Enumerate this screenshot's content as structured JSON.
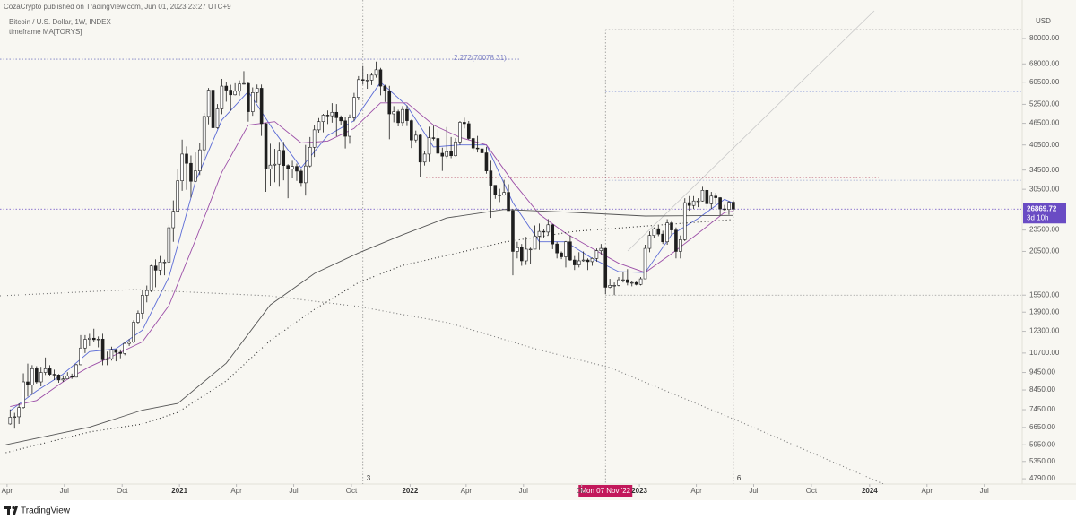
{
  "header": {
    "publisher": "CozaCrypto published on TradingView.com, Jun 01, 2023 23:27 UTC+9"
  },
  "footer": {
    "brand": "TradingView"
  },
  "chart_data": {
    "type": "candlestick",
    "title": "Bitcoin / U.S. Dollar, 1W, INDEX",
    "subtitle": "timeframe MA[TORYS]",
    "y_axis_label": "USD",
    "log_scale": true,
    "grid": false,
    "up_color": "#ffffff",
    "down_color": "#1e1e1e",
    "wick_color": "#1e1e1e",
    "xlim": [
      -1.3,
      230.5
    ],
    "xticks": [
      {
        "value": 0.3,
        "label": "Apr"
      },
      {
        "value": 13.3,
        "label": "Jul"
      },
      {
        "value": 26.4,
        "label": "Oct"
      },
      {
        "value": 39.4,
        "label": "2021"
      },
      {
        "value": 52.3,
        "label": "Apr"
      },
      {
        "value": 65.3,
        "label": "Jul"
      },
      {
        "value": 78.4,
        "label": "Oct"
      },
      {
        "value": 91.7,
        "label": "2022"
      },
      {
        "value": 104.4,
        "label": "Apr"
      },
      {
        "value": 117.4,
        "label": "Jul"
      },
      {
        "value": 130.6,
        "label": "Oct"
      },
      {
        "value": 143.7,
        "label": "2023"
      },
      {
        "value": 156.6,
        "label": "Apr"
      },
      {
        "value": 169.6,
        "label": "Jul"
      },
      {
        "value": 182.7,
        "label": "Oct"
      },
      {
        "value": 195.9,
        "label": "2024"
      },
      {
        "value": 208.9,
        "label": "Apr"
      },
      {
        "value": 221.9,
        "label": "Jul"
      }
    ],
    "ylim": [
      4630,
      93900
    ],
    "yticks": [
      {
        "value": 80000,
        "label": "80000.00"
      },
      {
        "value": 68000,
        "label": "68000.00"
      },
      {
        "value": 60500,
        "label": "60500.00"
      },
      {
        "value": 52500,
        "label": "52500.00"
      },
      {
        "value": 46500,
        "label": "46500.00"
      },
      {
        "value": 40500,
        "label": "40500.00"
      },
      {
        "value": 34500,
        "label": "34500.00"
      },
      {
        "value": 30500,
        "label": "30500.00"
      },
      {
        "value": 23500,
        "label": "23500.00"
      },
      {
        "value": 20500,
        "label": "20500.00"
      },
      {
        "value": 15500,
        "label": "15500.00"
      },
      {
        "value": 13900,
        "label": "13900.00"
      },
      {
        "value": 12300,
        "label": "12300.00"
      },
      {
        "value": 10700,
        "label": "10700.00"
      },
      {
        "value": 9450,
        "label": "9450.00"
      },
      {
        "value": 8450,
        "label": "8450.00"
      },
      {
        "value": 7450,
        "label": "7450.00"
      },
      {
        "value": 6650,
        "label": "6650.00"
      },
      {
        "value": 5950,
        "label": "5950.00"
      },
      {
        "value": 5350,
        "label": "5350.00"
      },
      {
        "value": 4790,
        "label": "4790.00"
      }
    ],
    "candles": {
      "x": [
        1,
        2,
        3,
        4,
        5,
        6,
        7,
        8,
        9,
        10,
        11,
        12,
        13,
        14,
        15,
        16,
        17,
        18,
        19,
        20,
        21,
        22,
        23,
        24,
        25,
        26,
        27,
        28,
        29,
        30,
        31,
        32,
        33,
        34,
        35,
        36,
        37,
        38,
        39,
        40,
        41,
        42,
        43,
        44,
        45,
        46,
        47,
        48,
        49,
        50,
        51,
        52,
        53,
        54,
        55,
        56,
        57,
        58,
        59,
        60,
        61,
        62,
        63,
        64,
        65,
        66,
        67,
        68,
        69,
        70,
        71,
        72,
        73,
        74,
        75,
        76,
        77,
        78,
        79,
        80,
        81,
        82,
        83,
        84,
        85,
        86,
        87,
        88,
        89,
        90,
        91,
        92,
        93,
        94,
        95,
        96,
        97,
        98,
        99,
        100,
        101,
        102,
        103,
        104,
        105,
        106,
        107,
        108,
        109,
        110,
        111,
        112,
        113,
        114,
        115,
        116,
        117,
        118,
        119,
        120,
        121,
        122,
        123,
        124,
        125,
        126,
        127,
        128,
        129,
        130,
        131,
        132,
        133,
        134,
        135,
        136,
        137,
        138,
        139,
        140,
        141,
        142,
        143,
        144,
        145,
        146,
        147,
        148,
        149,
        150,
        151,
        152,
        153,
        154,
        155,
        156,
        157,
        158,
        159,
        160,
        161,
        162,
        163,
        164,
        165
      ],
      "open": [
        6800,
        7100,
        7120,
        7550,
        8900,
        8720,
        9680,
        8900,
        9450,
        9680,
        9340,
        9300,
        9010,
        9070,
        9240,
        9170,
        9930,
        11050,
        11680,
        11770,
        11660,
        11700,
        10250,
        10320,
        10940,
        10750,
        10670,
        11380,
        11500,
        13030,
        13800,
        15480,
        15960,
        18680,
        18180,
        19150,
        19150,
        23850,
        26500,
        32200,
        38200,
        36000,
        32100,
        34300,
        39250,
        48600,
        57500,
        45200,
        51000,
        59000,
        57500,
        55800,
        57100,
        59800,
        60000,
        50100,
        56600,
        58200,
        46400,
        34700,
        35600,
        35800,
        39100,
        35500,
        34700,
        35300,
        34250,
        31800,
        35400,
        39900,
        44600,
        47000,
        49000,
        48800,
        49900,
        48200,
        47250,
        42800,
        48200,
        54900,
        61500,
        61300,
        61300,
        63300,
        65500,
        59000,
        57200,
        49400,
        50100,
        46700,
        50800,
        47300,
        41800,
        43100,
        36300,
        38200,
        42400,
        42200,
        38400,
        37700,
        38800,
        37800,
        41300,
        46800,
        46400,
        42200,
        39700,
        39500,
        38500,
        34300,
        31300,
        29400,
        29400,
        29900,
        26600,
        20500,
        21000,
        19300,
        20800,
        20800,
        22600,
        23300,
        23200,
        24300,
        21500,
        20300,
        19800,
        21800,
        19400,
        18800,
        19300,
        19400,
        19200,
        19600,
        20600,
        20900,
        16300,
        16500,
        16500,
        17100,
        17100,
        16800,
        16800,
        16600,
        17200,
        20900,
        22700,
        23700,
        22900,
        21800,
        24600,
        23500,
        20500,
        22100,
        28000,
        27500,
        28300,
        28300,
        30300,
        27800,
        29200,
        28900,
        26900,
        26800,
        28080
      ],
      "high": [
        7460,
        7300,
        7750,
        9400,
        10000,
        9900,
        9840,
        9800,
        10400,
        9900,
        9620,
        9350,
        9280,
        9470,
        9380,
        9980,
        12000,
        12000,
        12100,
        12500,
        11900,
        12100,
        10800,
        11150,
        10980,
        10950,
        11480,
        11700,
        13200,
        14050,
        15970,
        16480,
        18800,
        19480,
        19900,
        19450,
        24300,
        28400,
        34800,
        41900,
        40100,
        37850,
        38600,
        40900,
        49700,
        58300,
        58300,
        52600,
        61800,
        60600,
        59500,
        60100,
        61200,
        64900,
        60400,
        58500,
        59600,
        59600,
        46600,
        40800,
        39500,
        41300,
        41300,
        35800,
        36600,
        35950,
        34600,
        40500,
        42600,
        46000,
        48100,
        49400,
        50500,
        52900,
        52600,
        48900,
        48400,
        49200,
        56500,
        62900,
        67000,
        63700,
        64300,
        69000,
        66300,
        59500,
        59100,
        51900,
        50700,
        51900,
        52100,
        47600,
        44400,
        43500,
        38900,
        45500,
        45800,
        44800,
        39800,
        45400,
        42600,
        42300,
        47200,
        48200,
        47200,
        42400,
        42900,
        40000,
        40000,
        36600,
        31300,
        30600,
        32400,
        31500,
        26900,
        21800,
        21500,
        22500,
        21000,
        24200,
        24500,
        23600,
        25200,
        24400,
        21800,
        20500,
        21900,
        22700,
        19900,
        20400,
        20500,
        19600,
        19700,
        20900,
        21500,
        21000,
        17200,
        16800,
        17400,
        18000,
        18300,
        17000,
        16900,
        17400,
        21400,
        23300,
        23900,
        24200,
        23400,
        25200,
        25000,
        23900,
        22700,
        28800,
        29200,
        29200,
        28800,
        31000,
        30500,
        30000,
        29800,
        29000,
        27600,
        28300,
        28400
      ],
      "low": [
        6770,
        6600,
        6800,
        7500,
        8100,
        8200,
        8800,
        8650,
        9300,
        9250,
        9000,
        8850,
        8900,
        9050,
        9070,
        9150,
        9900,
        10700,
        11200,
        11500,
        11100,
        9900,
        9900,
        10200,
        10150,
        10350,
        10550,
        11200,
        11400,
        12900,
        13300,
        14800,
        15800,
        16300,
        17600,
        17600,
        19000,
        21800,
        26500,
        30200,
        30400,
        28900,
        32000,
        33400,
        37300,
        46200,
        43000,
        44900,
        49300,
        53400,
        50400,
        55600,
        55500,
        59600,
        47000,
        48800,
        53000,
        42900,
        30000,
        31200,
        31900,
        31000,
        32300,
        28800,
        32700,
        32200,
        31000,
        29300,
        35100,
        37500,
        43800,
        43900,
        46300,
        46700,
        42800,
        46000,
        39600,
        40800,
        47100,
        53900,
        59600,
        58000,
        59400,
        62300,
        55600,
        53300,
        42000,
        46800,
        45600,
        45600,
        45700,
        39700,
        41200,
        33000,
        35500,
        36300,
        41700,
        38000,
        34300,
        37200,
        37200,
        37600,
        40500,
        45000,
        41900,
        39200,
        38600,
        37600,
        33700,
        25400,
        28700,
        28100,
        29300,
        26600,
        17600,
        19600,
        18700,
        18800,
        18900,
        20800,
        20700,
        22400,
        22700,
        20800,
        19600,
        19500,
        18500,
        19300,
        18200,
        18500,
        19200,
        18200,
        18700,
        19200,
        20100,
        15600,
        16200,
        15500,
        16400,
        16800,
        16500,
        16400,
        16500,
        16500,
        17200,
        20400,
        22300,
        22600,
        21500,
        21400,
        22700,
        19600,
        19600,
        21900,
        26600,
        26900,
        27200,
        28200,
        27200,
        26900,
        27700,
        25800,
        26600,
        25900,
        26600
      ],
      "close": [
        7100,
        7120,
        7550,
        8900,
        8720,
        9680,
        8900,
        9450,
        9680,
        9340,
        9300,
        9010,
        9070,
        9240,
        9170,
        9930,
        11050,
        11680,
        11770,
        11660,
        11700,
        10250,
        10320,
        10940,
        10750,
        10670,
        11380,
        11500,
        13030,
        13800,
        15480,
        15960,
        18680,
        18180,
        19150,
        19150,
        23850,
        26500,
        32200,
        38200,
        36000,
        32100,
        34300,
        39250,
        48600,
        57500,
        45200,
        51000,
        59000,
        57500,
        55800,
        57100,
        59800,
        60000,
        50100,
        56600,
        58200,
        46400,
        34700,
        35600,
        35800,
        39100,
        35500,
        34700,
        35300,
        34250,
        31800,
        35400,
        39900,
        44600,
        47000,
        49000,
        48800,
        49900,
        48200,
        47250,
        42800,
        48200,
        54900,
        61500,
        61300,
        61300,
        63300,
        65500,
        59000,
        57200,
        49400,
        50100,
        46700,
        50800,
        47300,
        41800,
        43100,
        36300,
        38200,
        42400,
        42200,
        38400,
        37700,
        38800,
        37800,
        41300,
        46800,
        46400,
        42200,
        39700,
        39500,
        38500,
        34300,
        31300,
        29400,
        29400,
        29900,
        26600,
        20500,
        21000,
        19300,
        20800,
        20800,
        22600,
        23300,
        23200,
        24300,
        21500,
        20300,
        19800,
        21800,
        19400,
        18800,
        19300,
        19400,
        19200,
        19600,
        20600,
        20900,
        16300,
        16500,
        16500,
        17100,
        17100,
        16800,
        16800,
        16600,
        17200,
        20900,
        22700,
        23700,
        22900,
        21800,
        24600,
        23500,
        20500,
        22100,
        28000,
        27500,
        28300,
        28300,
        30300,
        27800,
        29200,
        28900,
        26900,
        26800,
        28080,
        26869.72
      ]
    },
    "last_price_color": "#6a4cc4",
    "countdown": "3d 10h",
    "lines": [
      {
        "color": "#5b6bd6",
        "style": "solid",
        "x": [
          1,
          7,
          13,
          19,
          25,
          31,
          37,
          43,
          49,
          55,
          61,
          67,
          73,
          79,
          85,
          91,
          97,
          103,
          109,
          115,
          121,
          127,
          133,
          139,
          145,
          151,
          157,
          163,
          165
        ],
        "values": [
          7400,
          8400,
          9350,
          10800,
          11000,
          12400,
          17400,
          32000,
          47500,
          57000,
          44000,
          35000,
          43000,
          47300,
          60500,
          52000,
          40000,
          40500,
          40500,
          28000,
          21800,
          21800,
          19600,
          18000,
          17900,
          22800,
          25300,
          28600,
          27900
        ]
      },
      {
        "color": "#9c4fa8",
        "style": "solid",
        "x": [
          1,
          7,
          13,
          19,
          25,
          31,
          37,
          43,
          49,
          55,
          61,
          67,
          73,
          79,
          85,
          91,
          97,
          103,
          109,
          115,
          121,
          127,
          133,
          139,
          145,
          151,
          157,
          163,
          165
        ],
        "values": [
          7600,
          7900,
          8900,
          9800,
          10600,
          11500,
          14500,
          22000,
          34000,
          46000,
          47000,
          41000,
          41500,
          45000,
          53000,
          53000,
          46000,
          42500,
          40500,
          32000,
          26000,
          23000,
          20900,
          19000,
          17900,
          20200,
          23000,
          26300,
          26500
        ]
      },
      {
        "color": "#555555",
        "style": "solid",
        "x": [
          0,
          19,
          31,
          39,
          50,
          60,
          70,
          80,
          90,
          100,
          113,
          129,
          145,
          165
        ],
        "values": [
          5950,
          6660,
          7430,
          7750,
          10030,
          14560,
          17800,
          20300,
          22800,
          25400,
          26800,
          26300,
          25700,
          25800
        ]
      },
      {
        "color": "#333333",
        "style": "dotted",
        "x": [
          0,
          19,
          31,
          39,
          50,
          60,
          70,
          80,
          90,
          100,
          113,
          129,
          145,
          165
        ],
        "values": [
          5660,
          6460,
          6800,
          7320,
          8950,
          11600,
          14150,
          16800,
          18740,
          19970,
          21760,
          23300,
          24100,
          25130
        ]
      },
      {
        "color": "#777777",
        "style": "dotted",
        "x": [
          -1.3,
          29.2,
          59.7,
          80,
          100.3,
          120.7,
          136.9,
          165.4,
          189.8,
          199
        ],
        "values": [
          15430,
          16060,
          15430,
          14410,
          12990,
          10940,
          9760,
          6990,
          5190,
          4630
        ]
      }
    ],
    "levels": [
      {
        "value": 70078.31,
        "label": "2.272(70078.31)",
        "color": "#7b7fc4",
        "from": -1.3,
        "to": 116.5
      },
      {
        "value": 84700,
        "color": "#9a9a9a",
        "from": 136,
        "to": 230.5
      },
      {
        "value": 57000,
        "color": "#7d8fd6",
        "from": 136,
        "to": 230.5
      },
      {
        "value": 32900,
        "color": "#a01c3c",
        "from": 95.3,
        "to": 197.9
      },
      {
        "value": 32300,
        "color": "#9aa6d0",
        "from": 136,
        "to": 230.5
      },
      {
        "value": 15500,
        "color": "#9a9a9a",
        "from": 136,
        "to": 230.5
      },
      {
        "value": 26869.72,
        "color": "#6a4cc4",
        "from": -1.3,
        "to": 230.5
      }
    ],
    "vlines": [
      {
        "x": 81,
        "label": "3"
      },
      {
        "x": 136,
        "label": "Mon 07 Nov '22",
        "color": "#c2185b"
      },
      {
        "x": 165,
        "label": "6"
      }
    ]
  }
}
